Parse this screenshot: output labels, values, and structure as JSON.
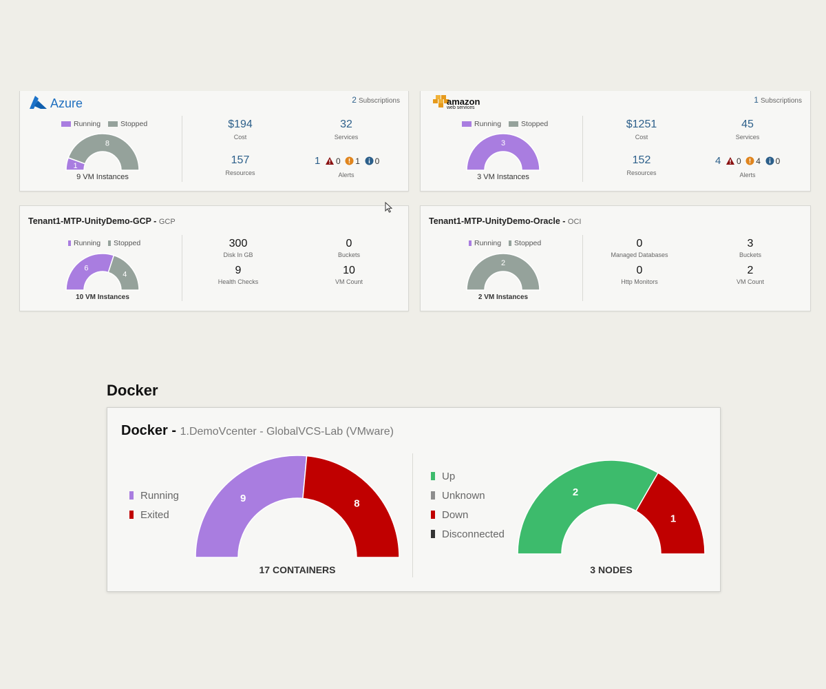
{
  "colors": {
    "running": "#a97de0",
    "stopped": "#95a29b",
    "exited": "#c00000",
    "up": "#3dbb6c",
    "unknown": "#8d8d8d",
    "down": "#c00000",
    "disconnected": "#333333",
    "link_blue": "#2c5f8a"
  },
  "azure": {
    "logo_text": "Azure",
    "subscriptions_count": "2",
    "subscriptions_label": "Subscriptions",
    "legend": [
      "Running",
      "Stopped"
    ],
    "gauge": {
      "running": 1,
      "stopped": 8
    },
    "gauge_labels": {
      "running": "1",
      "stopped": "8"
    },
    "instances_label": "9 VM Instances",
    "cost": "$194",
    "cost_label": "Cost",
    "services": "32",
    "services_label": "Services",
    "resources": "157",
    "resources_label": "Resources",
    "alerts": {
      "total": "1",
      "critical": "0",
      "warning": "1",
      "info": "0"
    },
    "alerts_label": "Alerts"
  },
  "aws": {
    "logo_text": "amazon",
    "logo_sub": "web services",
    "subscriptions_count": "1",
    "subscriptions_label": "Subscriptions",
    "legend": [
      "Running",
      "Stopped"
    ],
    "gauge": {
      "running": 3,
      "stopped": 0
    },
    "gauge_labels": {
      "running": "3"
    },
    "instances_label": "3 VM Instances",
    "cost": "$1251",
    "cost_label": "Cost",
    "services": "45",
    "services_label": "Services",
    "resources": "152",
    "resources_label": "Resources",
    "alerts": {
      "total": "4",
      "critical": "0",
      "warning": "4",
      "info": "0"
    },
    "alerts_label": "Alerts"
  },
  "gcp": {
    "title": "Tenant1-MTP-UnityDemo-GCP -",
    "suffix": "GCP",
    "legend": [
      "Running",
      "Stopped"
    ],
    "gauge": {
      "running": 6,
      "stopped": 4
    },
    "gauge_labels": {
      "running": "6",
      "stopped": "4"
    },
    "instances_label": "10 VM Instances",
    "stats": [
      {
        "value": "300",
        "label": "Disk In GB"
      },
      {
        "value": "0",
        "label": "Buckets"
      },
      {
        "value": "9",
        "label": "Health Checks"
      },
      {
        "value": "10",
        "label": "VM Count"
      }
    ]
  },
  "oci": {
    "title": "Tenant1-MTP-UnityDemo-Oracle -",
    "suffix": "OCI",
    "legend": [
      "Running",
      "Stopped"
    ],
    "gauge": {
      "running": 0,
      "stopped": 2
    },
    "gauge_labels": {
      "stopped": "2"
    },
    "instances_label": "2 VM Instances",
    "stats": [
      {
        "value": "0",
        "label": "Managed Databases"
      },
      {
        "value": "3",
        "label": "Buckets"
      },
      {
        "value": "0",
        "label": "Http Monitors"
      },
      {
        "value": "2",
        "label": "VM Count"
      }
    ]
  },
  "docker": {
    "heading": "Docker",
    "title": "Docker -",
    "subtitle": "1.DemoVcenter - GlobalVCS-Lab (VMware)",
    "containers_legend": [
      "Running",
      "Exited"
    ],
    "containers": {
      "running": 9,
      "exited": 8
    },
    "containers_labels": {
      "running": "9",
      "exited": "8"
    },
    "containers_caption": "17 CONTAINERS",
    "nodes_legend": [
      "Up",
      "Unknown",
      "Down",
      "Disconnected"
    ],
    "nodes": {
      "up": 2,
      "unknown": 0,
      "down": 1,
      "disconnected": 0
    },
    "nodes_labels": {
      "up": "2",
      "down": "1"
    },
    "nodes_caption": "3 NODES"
  }
}
